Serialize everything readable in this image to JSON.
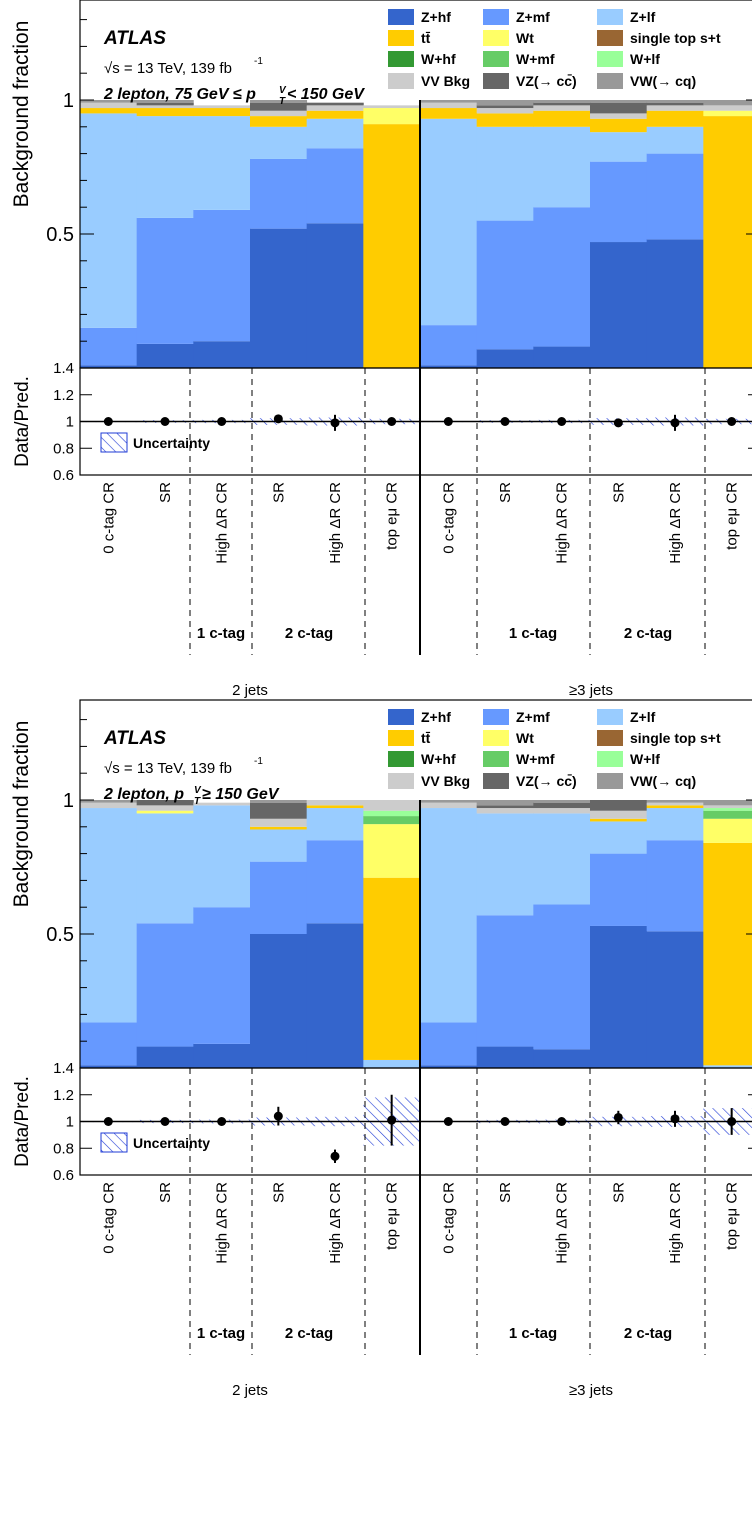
{
  "chart_data": [
    {
      "type": "bar",
      "stacked": true,
      "panel": "top",
      "label": {
        "experiment": "ATLAS",
        "energy": "√s = 13 TeV, 139 fb",
        "lumi_sup": "-1",
        "selection_pre": "2 lepton, 75 GeV  ≤ p",
        "selection_post": " < 150 GeV"
      },
      "ylabel": "Background fraction",
      "ylim": [
        0,
        1.5
      ],
      "yticks": [
        {
          "value": 0.5,
          "label": "0.5"
        },
        {
          "value": 1,
          "label": "1"
        }
      ],
      "regions": [
        "0 c-tag CR",
        "SR",
        "High ΔR CR",
        "SR",
        "High ΔR CR",
        "top eμ CR",
        "0 c-tag CR",
        "SR",
        "High ΔR CR",
        "SR",
        "High ΔR CR",
        "top eμ CR"
      ],
      "series": [
        {
          "name": "Z+hf",
          "color": "#3465cc",
          "values": [
            0.01,
            0.09,
            0.1,
            0.52,
            0.54,
            0.0,
            0.01,
            0.07,
            0.08,
            0.47,
            0.48,
            0.0
          ]
        },
        {
          "name": "Z+mf",
          "color": "#6699ff",
          "values": [
            0.14,
            0.47,
            0.49,
            0.26,
            0.28,
            0.0,
            0.15,
            0.48,
            0.52,
            0.3,
            0.32,
            0.0
          ]
        },
        {
          "name": "Z+lf",
          "color": "#99ccff",
          "values": [
            0.8,
            0.38,
            0.35,
            0.12,
            0.11,
            0.0,
            0.77,
            0.35,
            0.3,
            0.11,
            0.1,
            0.0
          ]
        },
        {
          "name": "tt̄",
          "color": "#ffcc00",
          "values": [
            0.02,
            0.03,
            0.03,
            0.04,
            0.03,
            0.91,
            0.04,
            0.05,
            0.06,
            0.05,
            0.06,
            0.94
          ]
        },
        {
          "name": "Wt",
          "color": "#ffff66",
          "values": [
            0.0,
            0.0,
            0.0,
            0.0,
            0.0,
            0.06,
            0.0,
            0.0,
            0.0,
            0.0,
            0.0,
            0.02
          ]
        },
        {
          "name": "single top s+t",
          "color": "#996633",
          "values": [
            0,
            0,
            0,
            0,
            0,
            0,
            0,
            0,
            0,
            0,
            0,
            0
          ]
        },
        {
          "name": "W+hf",
          "color": "#339933",
          "values": [
            0,
            0,
            0,
            0,
            0,
            0,
            0,
            0,
            0,
            0,
            0,
            0
          ]
        },
        {
          "name": "W+mf",
          "color": "#66cc66",
          "values": [
            0,
            0,
            0,
            0,
            0,
            0,
            0,
            0,
            0,
            0,
            0,
            0
          ]
        },
        {
          "name": "W+lf",
          "color": "#99ff99",
          "values": [
            0,
            0,
            0,
            0,
            0,
            0,
            0,
            0,
            0,
            0,
            0,
            0
          ]
        },
        {
          "name": "VV Bkg",
          "color": "#cccccc",
          "values": [
            0.02,
            0.01,
            0.01,
            0.02,
            0.02,
            0.01,
            0.02,
            0.02,
            0.02,
            0.02,
            0.02,
            0.02
          ]
        },
        {
          "name": "VZ(→ cc̄)",
          "color": "#666666",
          "values": [
            0.0,
            0.01,
            0.0,
            0.03,
            0.01,
            0.0,
            0.0,
            0.01,
            0.01,
            0.04,
            0.01,
            0.0
          ]
        },
        {
          "name": "VW(→ cq)",
          "color": "#999999",
          "values": [
            0.01,
            0.01,
            0.0,
            0.01,
            0.0,
            0.0,
            0.01,
            0.02,
            0.01,
            0.01,
            0.01,
            0.02
          ]
        }
      ],
      "ratio": {
        "ylabel": "Data/Pred.",
        "ylim": [
          0.6,
          1.4
        ],
        "yticks": [
          {
            "value": 0.6,
            "label": "0.6"
          },
          {
            "value": 0.8,
            "label": "0.8"
          },
          {
            "value": 1,
            "label": "1"
          },
          {
            "value": 1.2,
            "label": "1.2"
          },
          {
            "value": 1.4,
            "label": "1.4"
          }
        ],
        "points": [
          1.0,
          1.0,
          1.0,
          1.02,
          0.99,
          1.0,
          1.0,
          1.0,
          1.0,
          0.99,
          0.99,
          1.0
        ],
        "errors": [
          0.004,
          0.006,
          0.008,
          0.02,
          0.06,
          0.012,
          0.004,
          0.006,
          0.008,
          0.025,
          0.06,
          0.015
        ],
        "band": [
          0.003,
          0.01,
          0.012,
          0.025,
          0.03,
          0.02,
          0.003,
          0.01,
          0.012,
          0.025,
          0.03,
          0.02
        ],
        "legend": "Uncertainty"
      },
      "groups": [
        "1 c-tag",
        "2 c-tag",
        "1 c-tag",
        "2 c-tag"
      ],
      "jets": [
        "2 jets",
        "≥3 jets"
      ]
    },
    {
      "type": "bar",
      "stacked": true,
      "panel": "bottom",
      "label": {
        "experiment": "ATLAS",
        "energy": "√s = 13 TeV, 139 fb",
        "lumi_sup": "-1",
        "selection_pre": "2 lepton, p",
        "selection_post": " ≥ 150 GeV"
      },
      "ylabel": "Background fraction",
      "ylim": [
        0,
        1.5
      ],
      "yticks": [
        {
          "value": 0.5,
          "label": "0.5"
        },
        {
          "value": 1,
          "label": "1"
        }
      ],
      "regions": [
        "0 c-tag CR",
        "SR",
        "High ΔR CR",
        "SR",
        "High ΔR CR",
        "top eμ CR",
        "0 c-tag CR",
        "SR",
        "High ΔR CR",
        "SR",
        "High ΔR CR",
        "top eμ CR"
      ],
      "series": [
        {
          "name": "Z+hf",
          "color": "#3465cc",
          "values": [
            0.01,
            0.08,
            0.09,
            0.5,
            0.54,
            0.0,
            0.01,
            0.08,
            0.07,
            0.53,
            0.51,
            0.0
          ]
        },
        {
          "name": "Z+mf",
          "color": "#6699ff",
          "values": [
            0.16,
            0.46,
            0.51,
            0.27,
            0.31,
            0.0,
            0.16,
            0.49,
            0.54,
            0.27,
            0.34,
            0.0
          ]
        },
        {
          "name": "Z+lf",
          "color": "#99ccff",
          "values": [
            0.8,
            0.41,
            0.38,
            0.12,
            0.12,
            0.03,
            0.8,
            0.38,
            0.34,
            0.12,
            0.12,
            0.01
          ]
        },
        {
          "name": "tt̄",
          "color": "#ffcc00",
          "values": [
            0.0,
            0.0,
            0.0,
            0.01,
            0.01,
            0.68,
            0.0,
            0.0,
            0.0,
            0.01,
            0.01,
            0.83
          ]
        },
        {
          "name": "Wt",
          "color": "#ffff66",
          "values": [
            0.0,
            0.01,
            0.0,
            0.0,
            0.0,
            0.2,
            0.0,
            0.0,
            0.0,
            0.0,
            0.0,
            0.09
          ]
        },
        {
          "name": "single top s+t",
          "color": "#996633",
          "values": [
            0,
            0,
            0,
            0,
            0,
            0,
            0,
            0,
            0,
            0,
            0,
            0
          ]
        },
        {
          "name": "W+hf",
          "color": "#339933",
          "values": [
            0,
            0,
            0,
            0,
            0,
            0,
            0,
            0,
            0,
            0,
            0,
            0
          ]
        },
        {
          "name": "W+mf",
          "color": "#66cc66",
          "values": [
            0,
            0,
            0,
            0,
            0,
            0.03,
            0,
            0,
            0,
            0,
            0,
            0.03
          ]
        },
        {
          "name": "W+lf",
          "color": "#99ff99",
          "values": [
            0,
            0,
            0,
            0,
            0,
            0.02,
            0,
            0,
            0,
            0,
            0,
            0.01
          ]
        },
        {
          "name": "VV Bkg",
          "color": "#cccccc",
          "values": [
            0.02,
            0.02,
            0.01,
            0.03,
            0.02,
            0.04,
            0.02,
            0.02,
            0.02,
            0.03,
            0.01,
            0.01
          ]
        },
        {
          "name": "VZ(→ cc̄)",
          "color": "#666666",
          "values": [
            0.0,
            0.02,
            0.0,
            0.06,
            0.0,
            0.0,
            0.0,
            0.01,
            0.02,
            0.04,
            0.0,
            0.0
          ]
        },
        {
          "name": "VW(→ cq)",
          "color": "#999999",
          "values": [
            0.01,
            0.0,
            0.0,
            0.01,
            0.0,
            0.0,
            0.01,
            0.02,
            0.01,
            0.0,
            0.01,
            0.02
          ]
        }
      ],
      "ratio": {
        "ylabel": "Data/Pred.",
        "ylim": [
          0.6,
          1.4
        ],
        "yticks": [
          {
            "value": 0.6,
            "label": "0.6"
          },
          {
            "value": 0.8,
            "label": "0.8"
          },
          {
            "value": 1,
            "label": "1"
          },
          {
            "value": 1.2,
            "label": "1.2"
          },
          {
            "value": 1.4,
            "label": "1.4"
          }
        ],
        "points": [
          1.0,
          1.0,
          1.0,
          1.04,
          0.74,
          1.01,
          1.0,
          1.0,
          1.0,
          1.03,
          1.02,
          1.0
        ],
        "errors": [
          0.005,
          0.007,
          0.01,
          0.07,
          0.05,
          0.19,
          0.005,
          0.007,
          0.01,
          0.05,
          0.06,
          0.1
        ],
        "band": [
          0.003,
          0.012,
          0.014,
          0.03,
          0.035,
          0.18,
          0.003,
          0.012,
          0.014,
          0.035,
          0.04,
          0.1
        ],
        "legend": "Uncertainty"
      },
      "groups": [
        "1 c-tag",
        "2 c-tag",
        "1 c-tag",
        "2 c-tag"
      ],
      "jets": [
        "2 jets",
        "≥3 jets"
      ]
    }
  ]
}
